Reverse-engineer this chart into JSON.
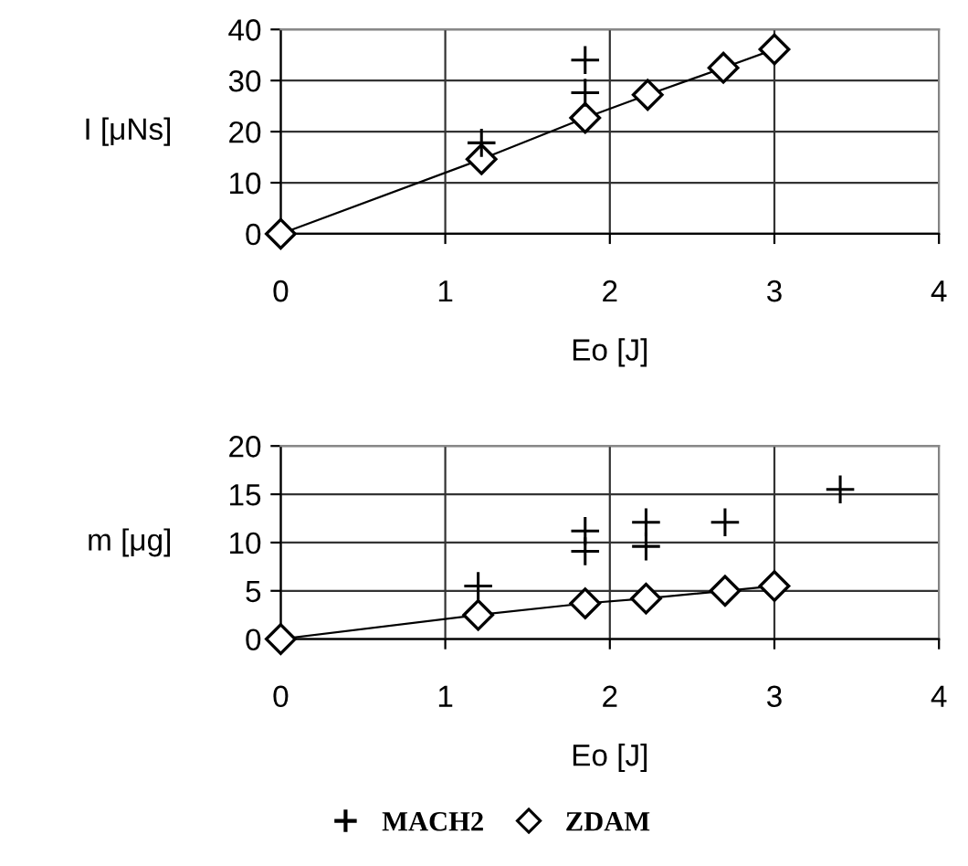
{
  "chart_data": [
    {
      "type": "scatter",
      "xlabel": "Eo [J]",
      "ylabel": "I [μNs]",
      "xlim": [
        0,
        4
      ],
      "xticks": [
        0,
        1,
        2,
        3,
        4
      ],
      "ylim": [
        0,
        40
      ],
      "yticks": [
        0,
        10,
        20,
        30,
        40
      ],
      "grid": true,
      "legend": "bottom",
      "series": [
        {
          "name": "MACH2",
          "marker": "cross",
          "color": "#000000",
          "x": [
            1.22,
            1.85,
            1.85
          ],
          "values": [
            17.8,
            34,
            27.6
          ]
        },
        {
          "name": "ZDAM",
          "type": "line",
          "marker": "diamond",
          "color": "#000000",
          "x": [
            0,
            1.22,
            1.85,
            2.23,
            2.69,
            3.0
          ],
          "values": [
            0,
            14.6,
            22.7,
            27.2,
            32.5,
            36.1
          ]
        }
      ]
    },
    {
      "type": "scatter",
      "xlabel": "Eo [J]",
      "ylabel": "m [μg]",
      "xlim": [
        0,
        4
      ],
      "xticks": [
        0,
        1,
        2,
        3,
        4
      ],
      "ylim": [
        0,
        20
      ],
      "yticks": [
        0,
        5,
        10,
        15,
        20
      ],
      "grid": true,
      "legend": "bottom",
      "series": [
        {
          "name": "MACH2",
          "marker": "cross",
          "color": "#000000",
          "x": [
            1.2,
            1.85,
            1.85,
            2.22,
            2.22,
            2.7,
            3.4
          ],
          "values": [
            5.5,
            11.2,
            9.1,
            12.1,
            9.6,
            12.1,
            15.5
          ]
        },
        {
          "name": "ZDAM",
          "type": "line",
          "marker": "diamond",
          "color": "#000000",
          "x": [
            0,
            1.2,
            1.85,
            2.22,
            2.7,
            3.0
          ],
          "values": [
            0,
            2.5,
            3.7,
            4.2,
            5.0,
            5.5
          ]
        }
      ]
    }
  ]
}
